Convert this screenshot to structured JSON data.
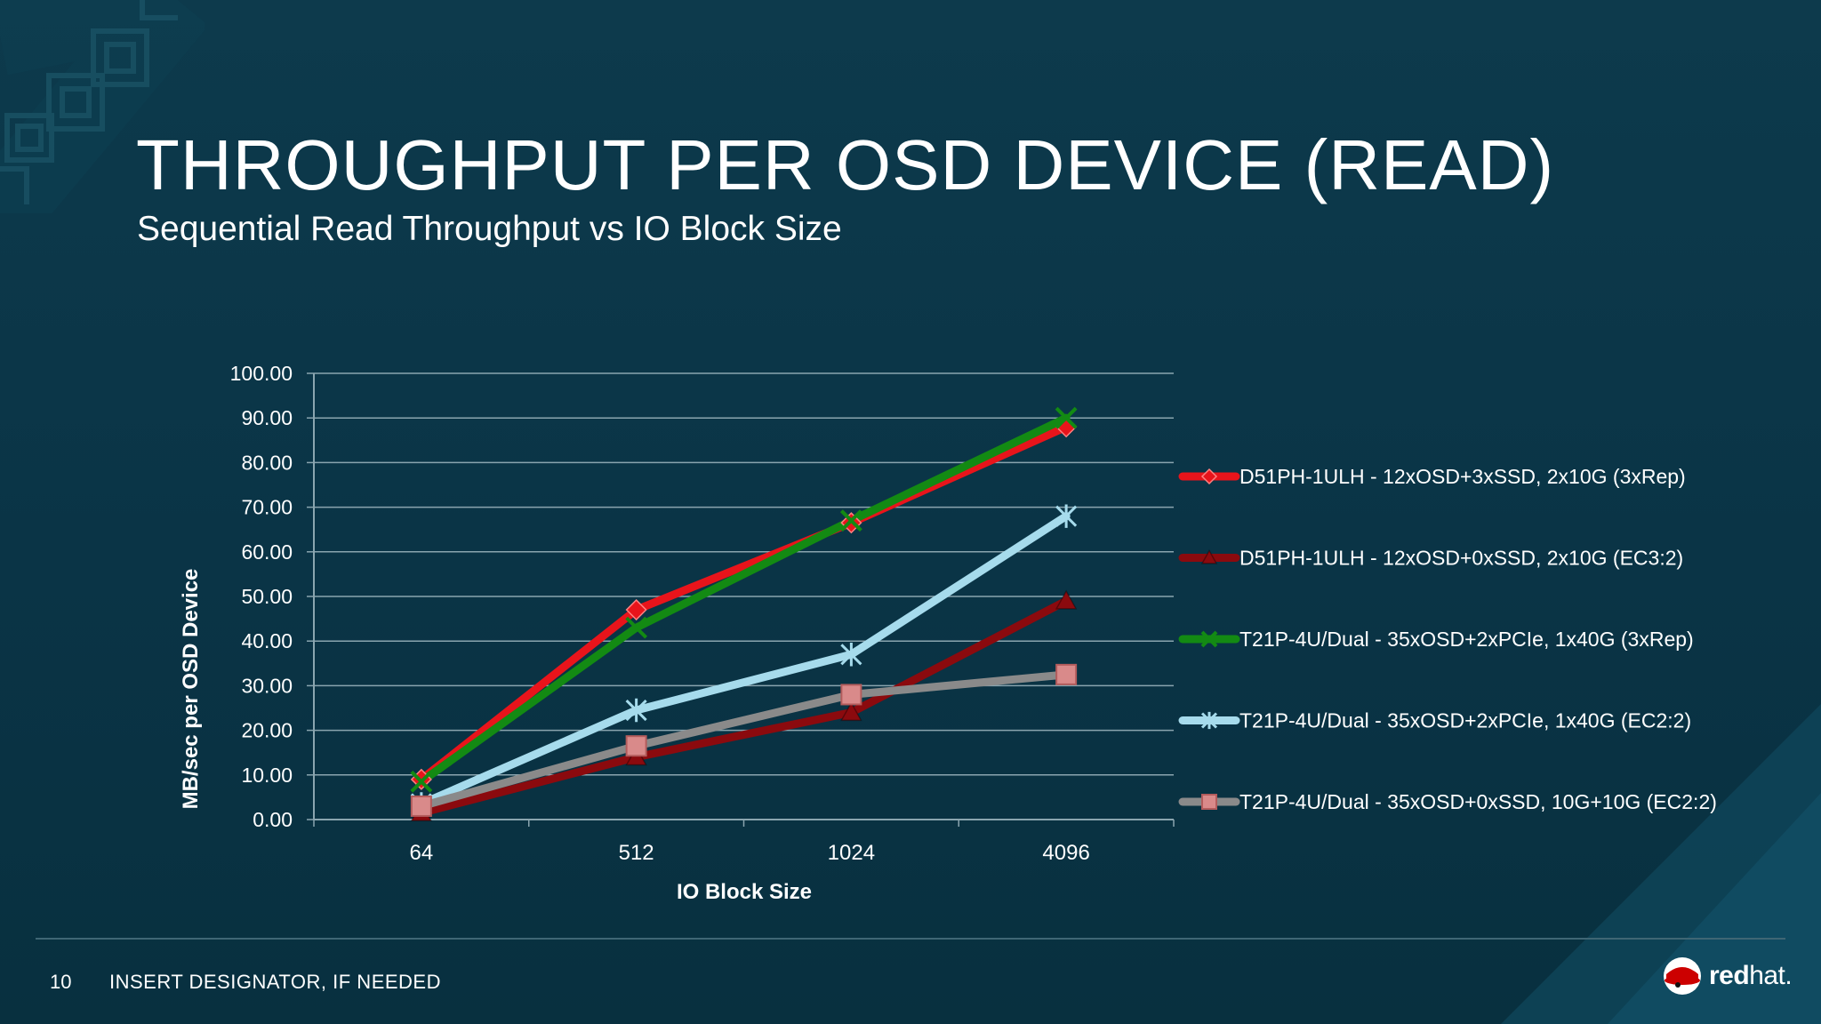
{
  "slide": {
    "title": "THROUGHPUT PER OSD DEVICE (READ)",
    "subtitle": "Sequential Read Throughput vs IO Block Size",
    "page_number": "10",
    "designator": "INSERT DESIGNATOR, IF NEEDED",
    "logo": {
      "brand_bold": "red",
      "brand_light": "hat.",
      "icon": "redhat-shadowman-icon"
    }
  },
  "colors": {
    "background": "#0b3749",
    "gridline": "#8aa5af",
    "text": "#ffffff"
  },
  "chart_data": {
    "type": "line",
    "xlabel": "IO Block Size",
    "ylabel": "MB/sec per OSD Device",
    "categories": [
      "64",
      "512",
      "1024",
      "4096"
    ],
    "ylim": [
      0,
      100
    ],
    "yticks": [
      "0.00",
      "10.00",
      "20.00",
      "30.00",
      "40.00",
      "50.00",
      "60.00",
      "70.00",
      "80.00",
      "90.00",
      "100.00"
    ],
    "grid": true,
    "legend_position": "right",
    "series": [
      {
        "name": "D51PH-1ULH - 12xOSD+3xSSD, 2x10G (3xRep)",
        "values": [
          9,
          47,
          66.5,
          88
        ],
        "color": "#e8141b",
        "marker": "diamond"
      },
      {
        "name": "D51PH-1ULH - 12xOSD+0xSSD, 2x10G (EC3:2)",
        "values": [
          1.5,
          14,
          24,
          49
        ],
        "color": "#8b0a0e",
        "marker": "triangle"
      },
      {
        "name": "T21P-4U/Dual - 35xOSD+2xPCIe, 1x40G (3xRep)",
        "values": [
          8.5,
          43,
          67,
          90
        ],
        "color": "#138a13",
        "marker": "x"
      },
      {
        "name": "T21P-4U/Dual - 35xOSD+2xPCIe, 1x40G (EC2:2)",
        "values": [
          3.5,
          24.5,
          37,
          68
        ],
        "color": "#a6dbec",
        "marker": "asterisk"
      },
      {
        "name": "T21P-4U/Dual - 35xOSD+0xSSD, 10G+10G (EC2:2)",
        "values": [
          3,
          16.5,
          28,
          32.5
        ],
        "color": "#8a8a8a",
        "marker": "square"
      }
    ]
  }
}
